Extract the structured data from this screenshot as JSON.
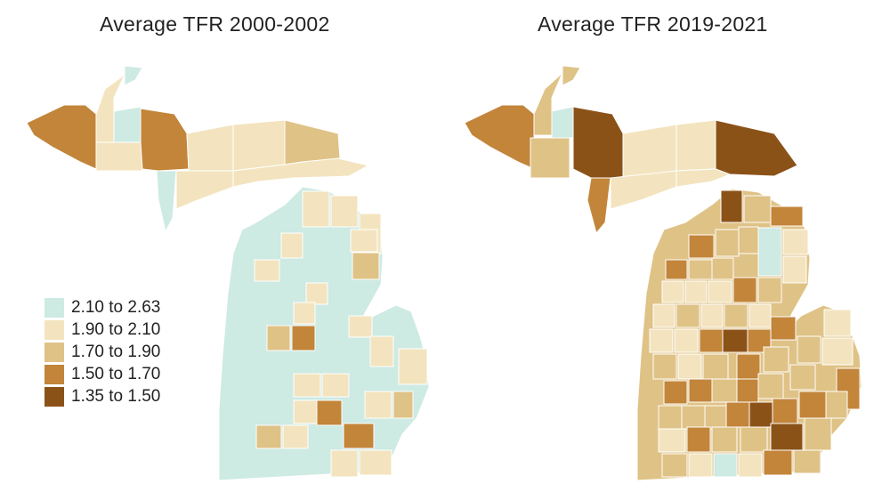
{
  "maps": [
    {
      "title": "Average TFR 2000-2002"
    },
    {
      "title": "Average TFR 2019-2021"
    }
  ],
  "legend": [
    {
      "label": "2.10 to 2.63",
      "color": "#cdeae3"
    },
    {
      "label": "1.90 to 2.10",
      "color": "#f3e4bf"
    },
    {
      "label": "1.70 to 1.90",
      "color": "#dfc286"
    },
    {
      "label": "1.50 to 1.70",
      "color": "#c2853a"
    },
    {
      "label": "1.35 to 1.50",
      "color": "#8b5218"
    }
  ]
}
